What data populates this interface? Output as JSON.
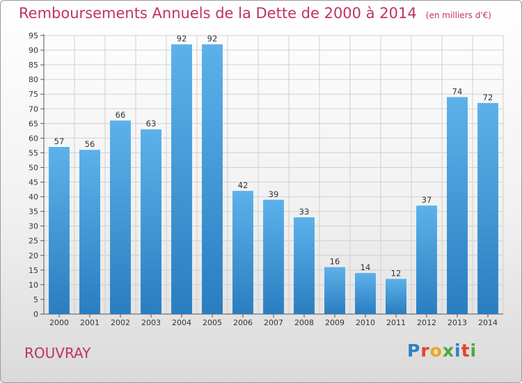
{
  "header": {
    "title": "Remboursements Annuels de la Dette de 2000 à 2014",
    "subtitle": "(en milliers d'€)"
  },
  "footer": {
    "location": "ROUVRAY",
    "brand": "Proxiti",
    "brand_letters": [
      {
        "char": "P",
        "color": "#2f7fc1"
      },
      {
        "char": "r",
        "color": "#e0442a"
      },
      {
        "char": "o",
        "color": "#f2a51a"
      },
      {
        "char": "x",
        "color": "#4aa83a"
      },
      {
        "char": "i",
        "color": "#2f7fc1"
      },
      {
        "char": "t",
        "color": "#e0442a"
      },
      {
        "char": "i",
        "color": "#4aa83a"
      }
    ]
  },
  "colors": {
    "accent": "#c0306a",
    "bar_top": "#5db1ea",
    "bar_bottom": "#2a7ec0",
    "grid": "#cfcfcf"
  },
  "chart_data": {
    "type": "bar",
    "title": "Remboursements Annuels de la Dette de 2000 à 2014",
    "subtitle": "(en milliers d'€)",
    "xlabel": "",
    "ylabel": "",
    "categories": [
      "2000",
      "2001",
      "2002",
      "2003",
      "2004",
      "2005",
      "2006",
      "2007",
      "2008",
      "2009",
      "2010",
      "2011",
      "2012",
      "2013",
      "2014"
    ],
    "values": [
      57,
      56,
      66,
      63,
      92,
      92,
      42,
      39,
      33,
      16,
      14,
      12,
      37,
      74,
      72
    ],
    "ylim": [
      0,
      95
    ],
    "yticks": [
      0,
      5,
      10,
      15,
      20,
      25,
      30,
      35,
      40,
      45,
      50,
      55,
      60,
      65,
      70,
      75,
      80,
      85,
      90,
      95
    ],
    "grid": true,
    "legend": "none"
  }
}
